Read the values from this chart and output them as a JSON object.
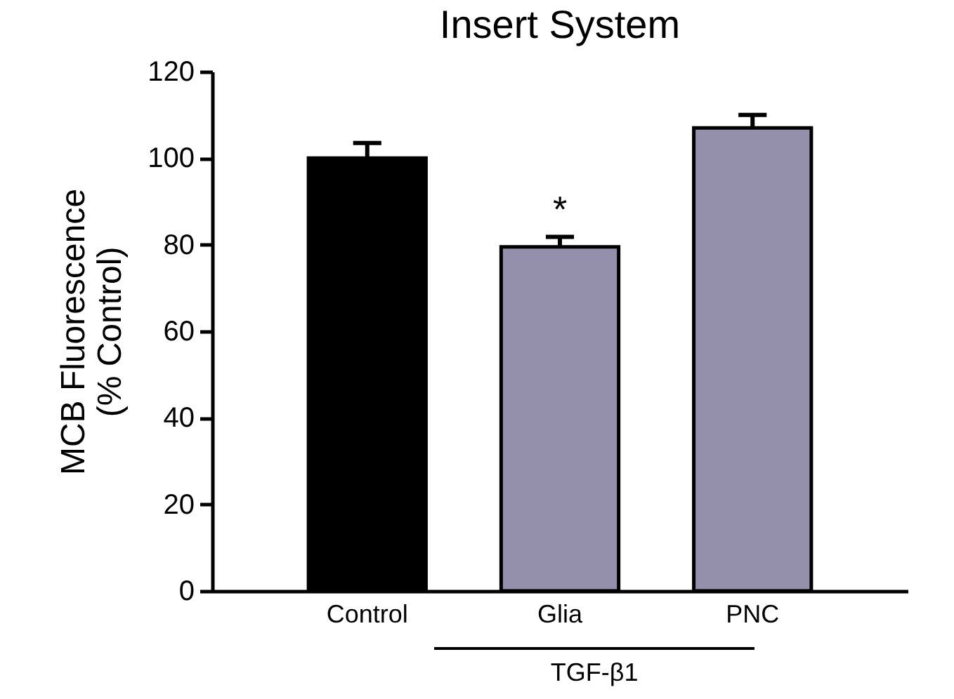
{
  "chart_data": {
    "type": "bar",
    "title": "Insert System",
    "ylabel": "MCB Fluorescence\n(% Control)",
    "categories": [
      "Control",
      "Glia",
      "PNC"
    ],
    "values": [
      100,
      79.5,
      107
    ],
    "errors": [
      3.5,
      2.3,
      3
    ],
    "colors": [
      "#000000",
      "#948fab",
      "#948fab"
    ],
    "ylim": [
      0,
      120
    ],
    "yticks": [
      0,
      20,
      40,
      60,
      80,
      100,
      120
    ],
    "grid": false,
    "annotations": [
      {
        "text": "*",
        "x": "Glia",
        "y": 79.5
      },
      "TGF-β1"
    ]
  }
}
